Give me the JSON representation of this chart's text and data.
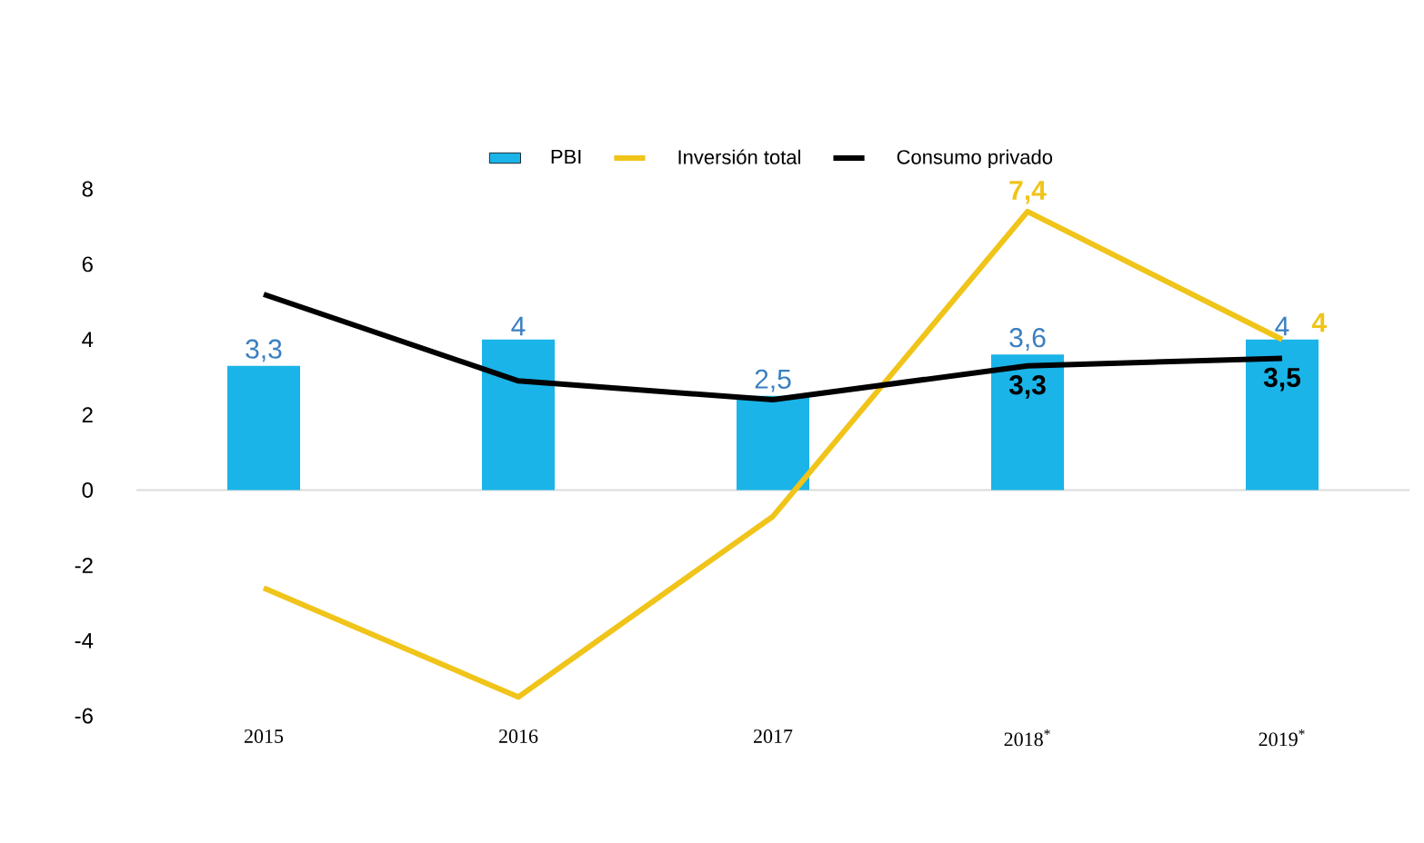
{
  "chart_data": {
    "type": "bar",
    "categories": [
      "2015",
      "2016",
      "2017",
      "2018$^{*}$",
      "2019$^{*}$"
    ],
    "series": [
      {
        "name": "PBI",
        "color": "#1ab4e8",
        "values": [
          3.3,
          4,
          2.5,
          3.6,
          4
        ],
        "value_labels": [
          "3,3",
          "4",
          "2,5",
          "3,6",
          "4"
        ]
      },
      {
        "name": "Inversión total",
        "type": "line",
        "color": "#f0c419",
        "values": [
          -2.6,
          -5.5,
          -0.7,
          7.4,
          4
        ],
        "value_labels": [
          null,
          null,
          null,
          "7,4",
          "4"
        ]
      },
      {
        "name": "Consumo privado",
        "type": "line",
        "color": "#000000",
        "values": [
          5.2,
          2.9,
          2.4,
          3.3,
          3.5
        ],
        "value_labels": [
          null,
          null,
          null,
          "3,3",
          "3,5"
        ]
      }
    ],
    "ylim": [
      -6,
      8
    ],
    "yticks": [
      -6,
      -4,
      -2,
      0,
      2,
      4,
      6,
      8
    ],
    "legend": "top",
    "grid": false,
    "ref_lines": [
      {
        "axis": "y",
        "value": 0,
        "color": "#dcdcdc"
      }
    ]
  }
}
